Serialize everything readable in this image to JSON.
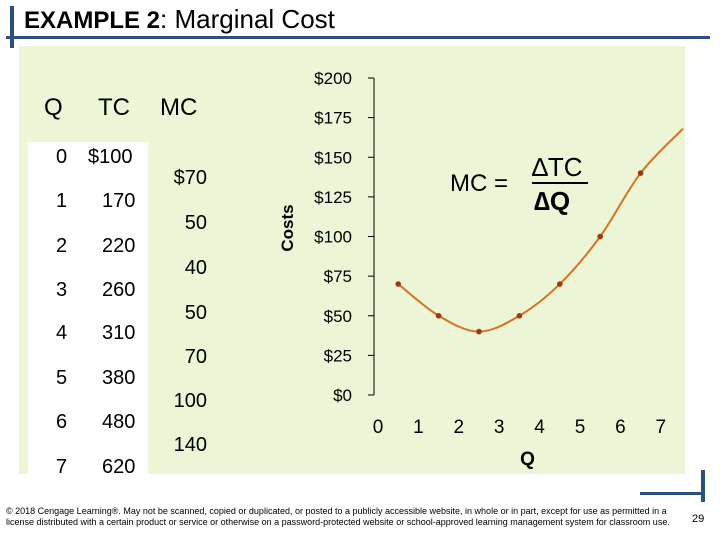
{
  "title": {
    "bold": "EXAMPLE 2",
    "rest": ":  Marginal Cost"
  },
  "table": {
    "headers": {
      "q": "Q",
      "tc": "TC",
      "mc": "MC"
    },
    "rows": [
      {
        "q": "0",
        "tc": "$100"
      },
      {
        "q": "1",
        "tc": "170"
      },
      {
        "q": "2",
        "tc": "220"
      },
      {
        "q": "3",
        "tc": "260"
      },
      {
        "q": "4",
        "tc": "310"
      },
      {
        "q": "5",
        "tc": "380"
      },
      {
        "q": "6",
        "tc": "480"
      },
      {
        "q": "7",
        "tc": "620"
      }
    ],
    "mc_values": [
      "$70",
      "50",
      "40",
      "50",
      "70",
      "100",
      "140"
    ]
  },
  "formula": {
    "lhs": "MC =",
    "numerator": "∆TC",
    "denominator": "∆Q"
  },
  "chart_data": {
    "type": "line",
    "xlabel": "Q",
    "ylabel": "Costs",
    "xlim": [
      0,
      7
    ],
    "ylim": [
      0,
      200
    ],
    "x_ticks": [
      "0",
      "1",
      "2",
      "3",
      "4",
      "5",
      "6",
      "7"
    ],
    "y_ticks": [
      "$0",
      "$25",
      "$50",
      "$75",
      "$100",
      "$125",
      "$150",
      "$175",
      "$200"
    ],
    "series": [
      {
        "x": [
          0.5,
          1.5,
          2.5,
          3.5,
          4.5,
          5.5,
          6.5
        ],
        "y": [
          70,
          50,
          40,
          50,
          70,
          100,
          140
        ]
      }
    ],
    "colors": {
      "line": "#d7731f",
      "marker": "#9b3a12",
      "panel": "#ecf5d5"
    }
  },
  "footer": "© 2018 Cengage Learning®. May not be scanned, copied or duplicated, or posted to a publicly accessible website, in whole or in part, except for use as permitted in a license distributed with a certain product or service or otherwise on a password-protected website or school-approved learning management system for classroom use.",
  "page_number": "29"
}
